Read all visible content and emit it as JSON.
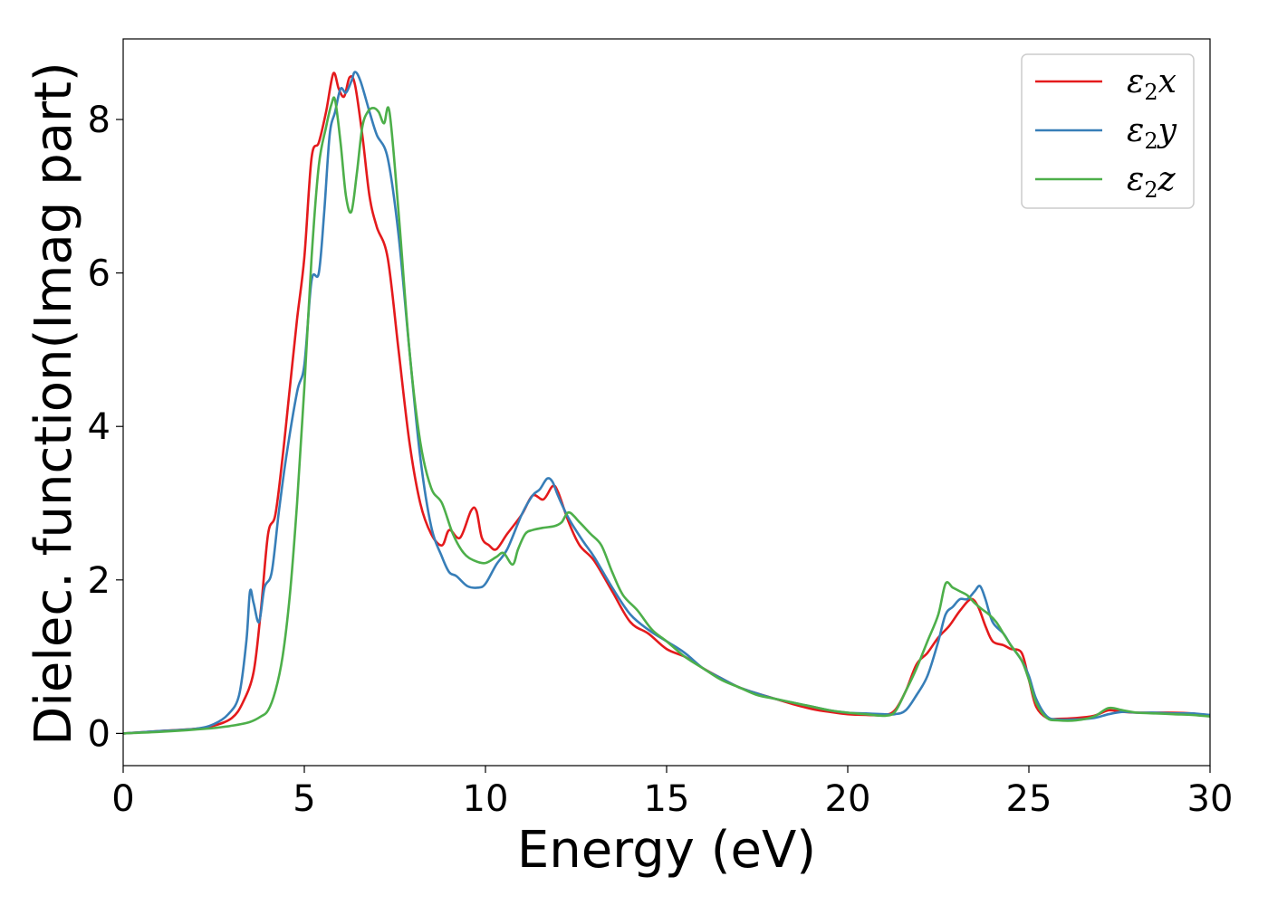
{
  "chart_data": {
    "type": "line",
    "title": "",
    "xlabel": "Energy (eV)",
    "ylabel": "Dielec. function(Imag part)",
    "xlim": [
      0,
      30
    ],
    "ylim": [
      -0.42,
      9.05
    ],
    "grid": false,
    "legend_position": "top-right",
    "xticks": [
      "0",
      "5",
      "10",
      "15",
      "20",
      "25",
      "30"
    ],
    "yticks": [
      "0",
      "2",
      "4",
      "6",
      "8"
    ],
    "series": [
      {
        "name": "ε2x",
        "legend": {
          "base": "ε",
          "sub": "2",
          "suffix": "x"
        },
        "color": "#e41a1c",
        "x": [
          0,
          1,
          2,
          2.5,
          3,
          3.3,
          3.6,
          3.8,
          4.0,
          4.2,
          4.4,
          4.6,
          4.8,
          5.0,
          5.2,
          5.4,
          5.6,
          5.8,
          5.95,
          6.1,
          6.25,
          6.4,
          6.6,
          6.8,
          7.0,
          7.3,
          7.6,
          7.9,
          8.2,
          8.5,
          8.8,
          9.0,
          9.3,
          9.6,
          9.75,
          9.9,
          10.1,
          10.3,
          10.6,
          11.0,
          11.3,
          11.6,
          11.85,
          12.0,
          12.3,
          12.6,
          13.0,
          13.5,
          14,
          14.5,
          15,
          15.5,
          16,
          16.5,
          17,
          17.5,
          18,
          18.5,
          19,
          19.5,
          20,
          20.5,
          21,
          21.3,
          21.6,
          21.9,
          22.2,
          22.5,
          22.8,
          23.1,
          23.4,
          23.6,
          23.8,
          24.0,
          24.3,
          24.5,
          24.8,
          25.0,
          25.2,
          25.5,
          25.8,
          26.3,
          26.8,
          27.2,
          27.6,
          28,
          28.5,
          29,
          29.5,
          30
        ],
        "y": [
          0.0,
          0.03,
          0.06,
          0.1,
          0.2,
          0.4,
          0.8,
          1.6,
          2.6,
          2.85,
          3.6,
          4.5,
          5.4,
          6.2,
          7.5,
          7.7,
          8.1,
          8.6,
          8.4,
          8.3,
          8.55,
          8.45,
          7.8,
          7.0,
          6.6,
          6.2,
          5.0,
          3.8,
          3.0,
          2.6,
          2.45,
          2.65,
          2.55,
          2.9,
          2.9,
          2.55,
          2.45,
          2.4,
          2.6,
          2.85,
          3.1,
          3.05,
          3.22,
          3.15,
          2.75,
          2.45,
          2.25,
          1.85,
          1.45,
          1.3,
          1.1,
          1.0,
          0.85,
          0.72,
          0.6,
          0.52,
          0.45,
          0.38,
          0.32,
          0.28,
          0.25,
          0.24,
          0.24,
          0.3,
          0.55,
          0.9,
          1.05,
          1.25,
          1.4,
          1.6,
          1.75,
          1.65,
          1.4,
          1.2,
          1.15,
          1.1,
          1.05,
          0.7,
          0.35,
          0.2,
          0.19,
          0.2,
          0.23,
          0.3,
          0.28,
          0.27,
          0.27,
          0.27,
          0.26,
          0.23
        ]
      },
      {
        "name": "ε2y",
        "legend": {
          "base": "ε",
          "sub": "2",
          "suffix": "y"
        },
        "color": "#377eb8",
        "x": [
          0,
          1,
          2,
          2.5,
          2.9,
          3.2,
          3.4,
          3.5,
          3.6,
          3.75,
          3.9,
          4.1,
          4.3,
          4.5,
          4.8,
          5.0,
          5.2,
          5.4,
          5.55,
          5.7,
          5.85,
          6.0,
          6.15,
          6.3,
          6.4,
          6.55,
          6.8,
          7.0,
          7.3,
          7.6,
          7.9,
          8.2,
          8.5,
          8.8,
          9.0,
          9.2,
          9.5,
          9.8,
          10.0,
          10.3,
          10.6,
          11.0,
          11.3,
          11.5,
          11.7,
          11.85,
          12.0,
          12.3,
          12.7,
          13.0,
          13.5,
          14,
          14.5,
          15,
          15.5,
          16,
          16.5,
          17,
          17.5,
          18,
          18.5,
          19,
          19.5,
          20,
          20.5,
          21,
          21.3,
          21.6,
          21.9,
          22.2,
          22.5,
          22.7,
          22.9,
          23.1,
          23.3,
          23.5,
          23.65,
          23.8,
          24.0,
          24.3,
          24.5,
          24.8,
          25.0,
          25.2,
          25.5,
          25.8,
          26.3,
          26.8,
          27.2,
          27.6,
          28,
          28.5,
          29,
          29.5,
          30
        ],
        "y": [
          0.0,
          0.03,
          0.06,
          0.12,
          0.25,
          0.5,
          1.2,
          1.85,
          1.7,
          1.45,
          1.9,
          2.1,
          2.9,
          3.6,
          4.45,
          4.8,
          5.9,
          6.0,
          6.8,
          7.8,
          8.1,
          8.4,
          8.35,
          8.5,
          8.62,
          8.5,
          8.1,
          7.8,
          7.5,
          6.5,
          5.0,
          3.6,
          2.7,
          2.3,
          2.1,
          2.05,
          1.92,
          1.9,
          1.95,
          2.2,
          2.4,
          2.85,
          3.1,
          3.18,
          3.32,
          3.28,
          3.1,
          2.8,
          2.5,
          2.3,
          1.9,
          1.55,
          1.35,
          1.2,
          1.05,
          0.85,
          0.72,
          0.6,
          0.52,
          0.45,
          0.4,
          0.35,
          0.3,
          0.27,
          0.26,
          0.25,
          0.25,
          0.3,
          0.5,
          0.75,
          1.2,
          1.55,
          1.65,
          1.75,
          1.75,
          1.85,
          1.92,
          1.75,
          1.45,
          1.3,
          1.15,
          0.95,
          0.75,
          0.45,
          0.22,
          0.18,
          0.18,
          0.2,
          0.25,
          0.28,
          0.27,
          0.27,
          0.26,
          0.26,
          0.24
        ]
      },
      {
        "name": "ε2z",
        "legend": {
          "base": "ε",
          "sub": "2",
          "suffix": "z"
        },
        "color": "#4daf4a",
        "x": [
          0,
          1,
          2,
          2.5,
          3,
          3.5,
          3.8,
          4.0,
          4.2,
          4.4,
          4.6,
          4.8,
          5.0,
          5.2,
          5.4,
          5.6,
          5.75,
          5.85,
          6.0,
          6.15,
          6.3,
          6.45,
          6.6,
          6.75,
          6.9,
          7.05,
          7.2,
          7.35,
          7.6,
          7.9,
          8.2,
          8.5,
          8.8,
          9.1,
          9.4,
          9.7,
          10.0,
          10.3,
          10.5,
          10.75,
          10.9,
          11.1,
          11.3,
          11.6,
          11.9,
          12.1,
          12.3,
          12.6,
          12.9,
          13.2,
          13.5,
          13.8,
          14.2,
          14.6,
          15.0,
          15.5,
          16,
          16.5,
          17,
          17.5,
          18,
          18.5,
          19,
          19.5,
          20,
          20.5,
          21,
          21.3,
          21.6,
          21.9,
          22.2,
          22.5,
          22.7,
          22.9,
          23.1,
          23.3,
          23.5,
          23.7,
          23.9,
          24.1,
          24.3,
          24.5,
          24.8,
          25.0,
          25.2,
          25.5,
          25.8,
          26.3,
          26.8,
          27.2,
          27.6,
          28,
          28.5,
          29,
          29.5,
          30
        ],
        "y": [
          0.0,
          0.02,
          0.05,
          0.07,
          0.1,
          0.15,
          0.22,
          0.3,
          0.55,
          1.0,
          1.8,
          3.0,
          4.5,
          6.2,
          7.4,
          7.9,
          8.2,
          8.25,
          7.7,
          7.0,
          6.8,
          7.3,
          7.9,
          8.1,
          8.15,
          8.1,
          7.95,
          8.1,
          6.8,
          5.0,
          3.8,
          3.2,
          3.0,
          2.6,
          2.35,
          2.25,
          2.22,
          2.3,
          2.35,
          2.2,
          2.4,
          2.6,
          2.65,
          2.68,
          2.7,
          2.75,
          2.88,
          2.75,
          2.6,
          2.45,
          2.1,
          1.8,
          1.6,
          1.35,
          1.2,
          1.0,
          0.85,
          0.7,
          0.6,
          0.5,
          0.45,
          0.4,
          0.35,
          0.3,
          0.27,
          0.25,
          0.23,
          0.28,
          0.55,
          0.85,
          1.2,
          1.55,
          1.95,
          1.9,
          1.85,
          1.8,
          1.7,
          1.62,
          1.55,
          1.45,
          1.3,
          1.15,
          0.95,
          0.7,
          0.4,
          0.2,
          0.17,
          0.17,
          0.22,
          0.33,
          0.3,
          0.27,
          0.26,
          0.25,
          0.24,
          0.22
        ]
      }
    ]
  }
}
